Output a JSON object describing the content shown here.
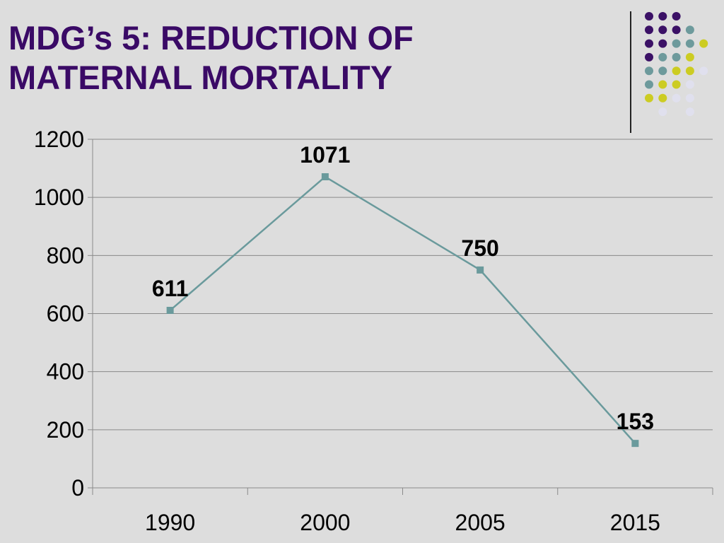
{
  "slide": {
    "title_line1": "MDG’s 5: REDUCTION OF",
    "title_line2": "MATERNAL MORTALITY"
  },
  "colors": {
    "background": "#dddddd",
    "title": "#3a0a66",
    "series_line": "#6a9a9c",
    "grid": "#8a8a8a",
    "decor_purple": "#3b1166",
    "decor_teal": "#6d9a9c",
    "decor_yellow": "#cccc22",
    "decor_lavender": "#e0e0ee"
  },
  "decor_dots": [
    [
      "purple",
      "purple",
      "purple",
      "none",
      "none"
    ],
    [
      "purple",
      "purple",
      "purple",
      "teal",
      "none"
    ],
    [
      "purple",
      "purple",
      "teal",
      "teal",
      "yellow"
    ],
    [
      "purple",
      "teal",
      "teal",
      "yellow",
      "none"
    ],
    [
      "teal",
      "teal",
      "yellow",
      "yellow",
      "lavender"
    ],
    [
      "teal",
      "yellow",
      "yellow",
      "lavender",
      "none"
    ],
    [
      "yellow",
      "yellow",
      "lavender",
      "lavender",
      "none"
    ],
    [
      "none",
      "lavender",
      "none",
      "lavender",
      "none"
    ]
  ],
  "chart_data": {
    "type": "line",
    "categories": [
      "1990",
      "2000",
      "2005",
      "2015"
    ],
    "values": [
      611,
      1071,
      750,
      153
    ],
    "data_labels": [
      "611",
      "1071",
      "750",
      "153"
    ],
    "title": "",
    "xlabel": "",
    "ylabel": "",
    "ylim": [
      0,
      1200
    ],
    "yticks": [
      0,
      200,
      400,
      600,
      800,
      1000,
      1200
    ],
    "ytick_labels": [
      "0",
      "200",
      "400",
      "600",
      "800",
      "1000",
      "1200"
    ],
    "grid": "horizontal",
    "legend": "none",
    "marker": "square"
  }
}
